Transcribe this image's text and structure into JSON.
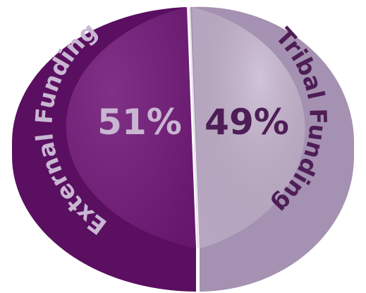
{
  "chart_data": {
    "type": "pie",
    "style": "3d",
    "title": "",
    "legend": "none",
    "slices": [
      {
        "label": "External Funding",
        "value": 51,
        "display": "51%",
        "color_top": "#721a79",
        "color_side": "#5a0f60",
        "color_label": "#c9b6d2"
      },
      {
        "label": "Tribal Funding",
        "value": 49,
        "display": "49%",
        "color_top": "#c2b0cc",
        "color_side": "#a591b1",
        "color_label": "#4e1d56"
      }
    ]
  }
}
